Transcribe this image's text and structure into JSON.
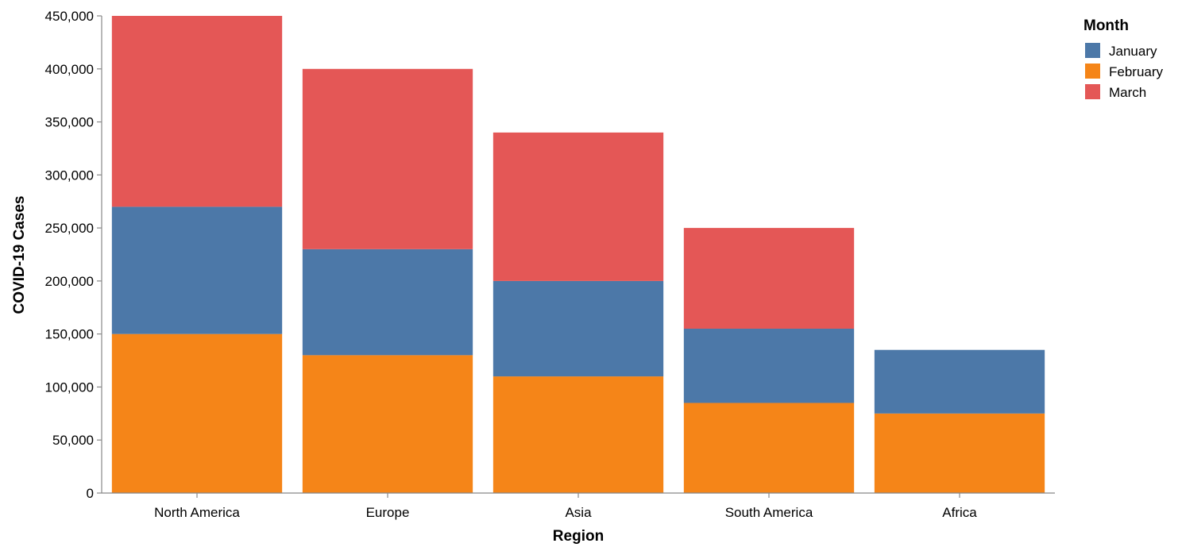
{
  "chart_data": {
    "type": "bar",
    "stacked": true,
    "xlabel": "Region",
    "ylabel": "COVID-19 Cases",
    "ylim": [
      0,
      450000
    ],
    "yticks": [
      0,
      50000,
      100000,
      150000,
      200000,
      250000,
      300000,
      350000,
      400000,
      450000
    ],
    "ytick_labels": [
      "0",
      "50,000",
      "100,000",
      "150,000",
      "200,000",
      "250,000",
      "300,000",
      "350,000",
      "400,000",
      "450,000"
    ],
    "categories": [
      "North America",
      "Europe",
      "Asia",
      "South America",
      "Africa"
    ],
    "stack_order": [
      "February",
      "January",
      "March"
    ],
    "series": [
      {
        "name": "January",
        "color": "#4c78a8",
        "values": [
          120000,
          100000,
          90000,
          70000,
          60000
        ]
      },
      {
        "name": "February",
        "color": "#f58518",
        "values": [
          150000,
          130000,
          110000,
          85000,
          75000
        ]
      },
      {
        "name": "March",
        "color": "#e45756",
        "values": [
          180000,
          170000,
          140000,
          95000,
          0
        ]
      }
    ],
    "legend": {
      "title": "Month",
      "position": "top-right",
      "entries": [
        "January",
        "February",
        "March"
      ]
    },
    "grid": false
  }
}
